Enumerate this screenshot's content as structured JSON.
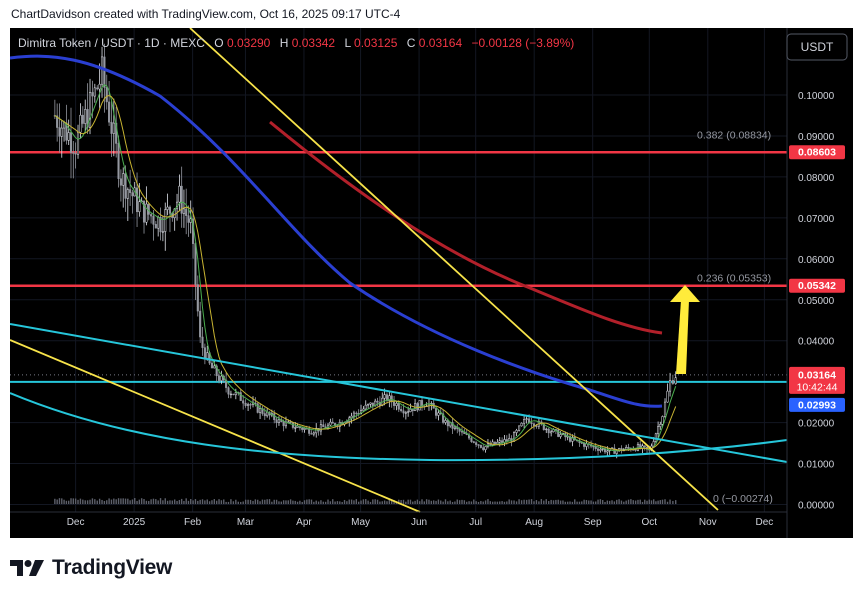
{
  "attribution": "ChartDavidson created with TradingView.com, Oct 16, 2025 09:17 UTC-4",
  "legend": {
    "symbol": "Dimitra Token / USDT · 1D · MEXC",
    "o_label": "O",
    "o_value": "0.03290",
    "h_label": "H",
    "h_value": "0.03342",
    "l_label": "L",
    "l_value": "0.03125",
    "c_label": "C",
    "c_value": "0.03164",
    "change": "−0.00128 (−3.89%)"
  },
  "currency_button": "USDT",
  "footer_brand": "TradingView",
  "colors": {
    "background": "#000000",
    "axis_text": "#d1d4dc",
    "resistance": "#f23645",
    "support": "#26c6da",
    "trend": "#f7e34a",
    "ma_blue": "#2a3fd1",
    "ma_red": "#b2202a",
    "price_tag": "#f23645",
    "ma_tag": "#2962ff",
    "arrow": "#ffeb3b"
  },
  "chart_data": {
    "type": "candlestick",
    "x_ticks": [
      "Dec",
      "2025",
      "Feb",
      "Mar",
      "Apr",
      "May",
      "Jun",
      "Jul",
      "Aug",
      "Sep",
      "Oct",
      "Nov",
      "Dec"
    ],
    "y_ticks": [
      "0.10000",
      "0.09000",
      "0.08000",
      "0.07000",
      "0.06000",
      "0.05000",
      "0.04000",
      "0.03000",
      "0.02000",
      "0.01000",
      "0.00000"
    ],
    "ylim": [
      0,
      0.11
    ],
    "horizontal_levels": [
      {
        "value": 0.08603,
        "label": "0.08603",
        "color": "#f23645"
      },
      {
        "value": 0.05342,
        "label": "0.05342",
        "color": "#f23645"
      },
      {
        "value": 0.02993,
        "label": "",
        "color": "#26c6da"
      }
    ],
    "fib_levels": [
      {
        "value": 0.08834,
        "label": "0.382 (0.08834)"
      },
      {
        "value": 0.05353,
        "label": "0.236 (0.05353)"
      },
      {
        "value": -0.00274,
        "label": "0 (−0.00274)"
      }
    ],
    "last_price": {
      "value": 0.03164,
      "label": "0.03164",
      "countdown": "10:42:44"
    },
    "ma_value": {
      "value": 0.02993,
      "label": "0.02993"
    },
    "price_series": [
      {
        "date": "2024-11-20",
        "close": 0.095
      },
      {
        "date": "2024-12-01",
        "close": 0.088
      },
      {
        "date": "2024-12-15",
        "close": 0.105
      },
      {
        "date": "2024-12-25",
        "close": 0.08
      },
      {
        "date": "2025-01-05",
        "close": 0.072
      },
      {
        "date": "2025-01-15",
        "close": 0.069
      },
      {
        "date": "2025-01-25",
        "close": 0.075
      },
      {
        "date": "2025-01-31",
        "close": 0.068
      },
      {
        "date": "2025-02-05",
        "close": 0.04
      },
      {
        "date": "2025-02-10",
        "close": 0.034
      },
      {
        "date": "2025-02-20",
        "close": 0.028
      },
      {
        "date": "2025-03-05",
        "close": 0.024
      },
      {
        "date": "2025-03-20",
        "close": 0.02
      },
      {
        "date": "2025-04-05",
        "close": 0.018
      },
      {
        "date": "2025-04-20",
        "close": 0.02
      },
      {
        "date": "2025-05-05",
        "close": 0.024
      },
      {
        "date": "2025-05-15",
        "close": 0.026
      },
      {
        "date": "2025-05-25",
        "close": 0.023
      },
      {
        "date": "2025-06-05",
        "close": 0.025
      },
      {
        "date": "2025-06-15",
        "close": 0.02
      },
      {
        "date": "2025-06-25",
        "close": 0.017
      },
      {
        "date": "2025-07-05",
        "close": 0.014
      },
      {
        "date": "2025-07-20",
        "close": 0.016
      },
      {
        "date": "2025-07-28",
        "close": 0.021
      },
      {
        "date": "2025-08-10",
        "close": 0.018
      },
      {
        "date": "2025-08-25",
        "close": 0.015
      },
      {
        "date": "2025-09-10",
        "close": 0.013
      },
      {
        "date": "2025-09-25",
        "close": 0.014
      },
      {
        "date": "2025-10-01",
        "close": 0.013
      },
      {
        "date": "2025-10-08",
        "close": 0.022
      },
      {
        "date": "2025-10-12",
        "close": 0.03
      },
      {
        "date": "2025-10-15",
        "close": 0.03164
      }
    ]
  }
}
